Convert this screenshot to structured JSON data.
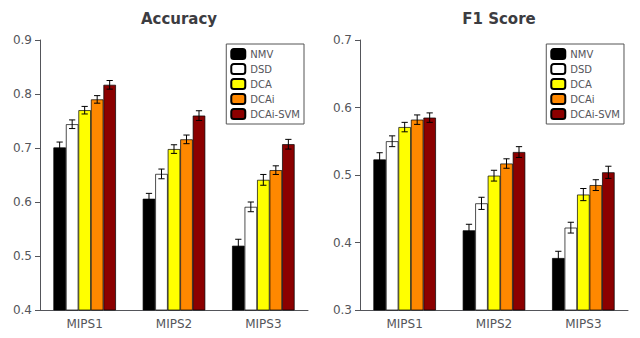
{
  "chart_data": [
    {
      "type": "bar",
      "title": "Accuracy",
      "categories": [
        "MIPS1",
        "MIPS2",
        "MIPS3"
      ],
      "series": [
        {
          "name": "NMV",
          "color": "#000000",
          "values": [
            0.701,
            0.606,
            0.519
          ],
          "errors": [
            0.01,
            0.01,
            0.012
          ]
        },
        {
          "name": "DSD",
          "color": "#ffffff",
          "values": [
            0.744,
            0.652,
            0.591
          ],
          "errors": [
            0.008,
            0.009,
            0.009
          ]
        },
        {
          "name": "DCA",
          "color": "#ffff00",
          "values": [
            0.77,
            0.698,
            0.641
          ],
          "errors": [
            0.007,
            0.008,
            0.01
          ]
        },
        {
          "name": "DCAi",
          "color": "#ff8800",
          "values": [
            0.79,
            0.716,
            0.659
          ],
          "errors": [
            0.007,
            0.008,
            0.008
          ]
        },
        {
          "name": "DCAi-SVM",
          "color": "#8b0000",
          "values": [
            0.817,
            0.76,
            0.707
          ],
          "errors": [
            0.008,
            0.009,
            0.009
          ]
        }
      ],
      "ylim": [
        0.4,
        0.9
      ],
      "yticks": [
        0.4,
        0.5,
        0.6,
        0.7,
        0.8,
        0.9
      ],
      "grid": false,
      "legend": "upper right"
    },
    {
      "type": "bar",
      "title": "F1 Score",
      "categories": [
        "MIPS1",
        "MIPS2",
        "MIPS3"
      ],
      "series": [
        {
          "name": "NMV",
          "color": "#000000",
          "values": [
            0.523,
            0.418,
            0.377
          ],
          "errors": [
            0.01,
            0.009,
            0.01
          ]
        },
        {
          "name": "DSD",
          "color": "#ffffff",
          "values": [
            0.55,
            0.458,
            0.422
          ],
          "errors": [
            0.008,
            0.009,
            0.008
          ]
        },
        {
          "name": "DCA",
          "color": "#ffff00",
          "values": [
            0.571,
            0.499,
            0.471
          ],
          "errors": [
            0.007,
            0.008,
            0.009
          ]
        },
        {
          "name": "DCAi",
          "color": "#ff8800",
          "values": [
            0.582,
            0.517,
            0.485
          ],
          "errors": [
            0.007,
            0.007,
            0.008
          ]
        },
        {
          "name": "DCAi-SVM",
          "color": "#8b0000",
          "values": [
            0.585,
            0.534,
            0.504
          ],
          "errors": [
            0.007,
            0.008,
            0.009
          ]
        }
      ],
      "ylim": [
        0.3,
        0.7
      ],
      "yticks": [
        0.3,
        0.4,
        0.5,
        0.6,
        0.7
      ],
      "grid": false,
      "legend": "upper right"
    }
  ]
}
